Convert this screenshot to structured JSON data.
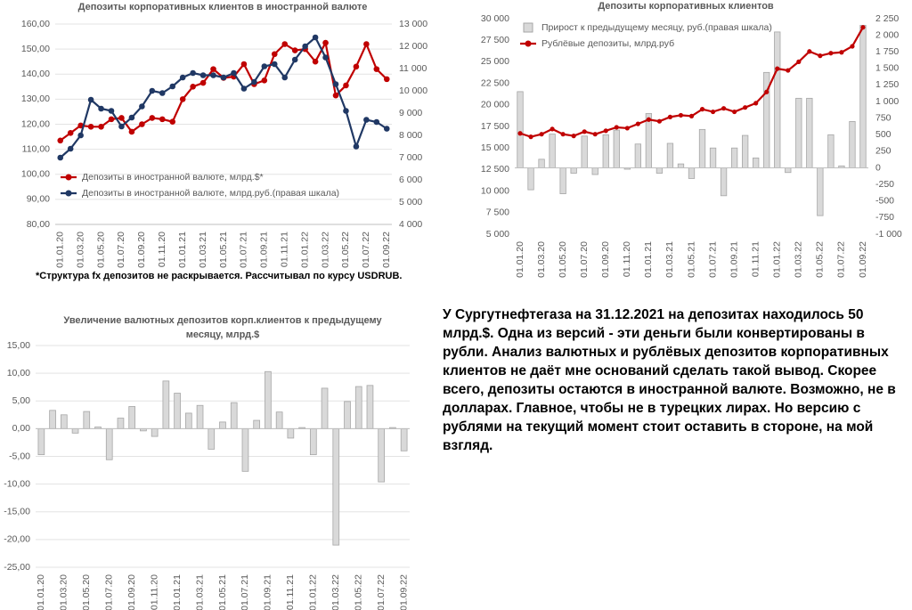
{
  "chart_data": [
    {
      "type": "line",
      "title": "Депозиты корпоративных клиентов в иностранной валюте",
      "note": "*Структура fx депозитов не раскрывается. Рассчитывал по курсу USDRUB.",
      "categories": [
        "01.01.20",
        null,
        "01.03.20",
        null,
        "01.05.20",
        null,
        "01.07.20",
        null,
        "01.09.20",
        null,
        "01.11.20",
        null,
        "01.01.21",
        null,
        "01.03.21",
        null,
        "01.05.21",
        null,
        "01.07.21",
        null,
        "01.09.21",
        null,
        "01.11.21",
        null,
        "01.01.22",
        null,
        "01.03.22",
        null,
        "01.05.22",
        null,
        "01.07.22",
        null,
        "01.09.22"
      ],
      "series": [
        {
          "name": "Депозиты в иностранной валюте, млрд.$*",
          "color": "#c00000",
          "axis": "y",
          "values": [
            113.5,
            116.5,
            119.5,
            119,
            119,
            122,
            122.5,
            117,
            120,
            122.5,
            122,
            121,
            130,
            135,
            136.5,
            142,
            138.5,
            139,
            144,
            136,
            137.5,
            148,
            152,
            149.5,
            150,
            145,
            152.5,
            131.5,
            135.5,
            143,
            152,
            142,
            138
          ]
        },
        {
          "name": "Депозиты в иностранной валюте, млрд.руб.(правая шкала)",
          "color": "#203864",
          "axis": "y2",
          "values": [
            7000,
            7400,
            8000,
            9600,
            9200,
            9100,
            8400,
            8800,
            9300,
            10000,
            9900,
            10200,
            10600,
            10800,
            10700,
            10700,
            10600,
            10800,
            10100,
            10400,
            11100,
            11200,
            10600,
            11400,
            12000,
            12400,
            11500,
            10300,
            9100,
            7500,
            8700,
            8600,
            8300
          ]
        }
      ],
      "ylim": [
        80,
        160
      ],
      "yticks": [
        {
          "value": 80,
          "label": "80,00"
        },
        {
          "value": 90,
          "label": "90,00"
        },
        {
          "value": 100,
          "label": "100,00"
        },
        {
          "value": 110,
          "label": "110,00"
        },
        {
          "value": 120,
          "label": "120,00"
        },
        {
          "value": 130,
          "label": "130,00"
        },
        {
          "value": 140,
          "label": "140,00"
        },
        {
          "value": 150,
          "label": "150,00"
        },
        {
          "value": 160,
          "label": "160,00"
        }
      ],
      "y2lim": [
        4000,
        13000
      ],
      "y2ticks": [
        {
          "value": 4000,
          "label": "4 000"
        },
        {
          "value": 5000,
          "label": "5 000"
        },
        {
          "value": 6000,
          "label": "6 000"
        },
        {
          "value": 7000,
          "label": "7 000"
        },
        {
          "value": 8000,
          "label": "8 000"
        },
        {
          "value": 9000,
          "label": "9 000"
        },
        {
          "value": 10000,
          "label": "10 000"
        },
        {
          "value": 11000,
          "label": "11 000"
        },
        {
          "value": 12000,
          "label": "12 000"
        },
        {
          "value": 13000,
          "label": "13 000"
        }
      ],
      "grid": true,
      "legend": "lower left"
    },
    {
      "type": "combo",
      "title": "Депозиты корпоративных клиентов",
      "categories": [
        "01.01.20",
        null,
        "01.03.20",
        null,
        "01.05.20",
        null,
        "01.07.20",
        null,
        "01.09.20",
        null,
        "01.11.20",
        null,
        "01.01.21",
        null,
        "01.03.21",
        null,
        "01.05.21",
        null,
        "01.07.21",
        null,
        "01.09.21",
        null,
        "01.11.21",
        null,
        "01.01.22",
        null,
        "01.03.22",
        null,
        "01.05.22",
        null,
        "01.07.22",
        null,
        "01.09.22"
      ],
      "series": [
        {
          "name": "Прирост к предыдущему месяцу, руб.(правая шкала)",
          "type": "bar",
          "color": "#d9d9d9",
          "axis": "y2",
          "values": [
            1150,
            -330,
            130,
            510,
            -390,
            -80,
            480,
            -100,
            500,
            570,
            -20,
            360,
            820,
            -80,
            370,
            60,
            -160,
            580,
            300,
            -420,
            300,
            490,
            150,
            1440,
            2050,
            -70,
            1050,
            1050,
            -720,
            500,
            30,
            700,
            2150
          ]
        },
        {
          "name": "Рублёвые депозиты, млрд.руб",
          "type": "line",
          "color": "#c00000",
          "axis": "y",
          "values": [
            16700,
            16300,
            16600,
            17200,
            16600,
            16400,
            16900,
            16600,
            17000,
            17400,
            17300,
            17800,
            18300,
            18100,
            18600,
            18800,
            18700,
            19500,
            19200,
            19600,
            19200,
            19700,
            20200,
            21500,
            24200,
            24000,
            25000,
            26200,
            25700,
            26000,
            26100,
            26800,
            29000
          ]
        }
      ],
      "ylim": [
        5000,
        30000
      ],
      "yticks": [
        {
          "value": 5000,
          "label": "5 000"
        },
        {
          "value": 7500,
          "label": "7 500"
        },
        {
          "value": 10000,
          "label": "10 000"
        },
        {
          "value": 12500,
          "label": "12 500"
        },
        {
          "value": 15000,
          "label": "15 000"
        },
        {
          "value": 17500,
          "label": "17 500"
        },
        {
          "value": 20000,
          "label": "20 000"
        },
        {
          "value": 22500,
          "label": "22 500"
        },
        {
          "value": 25000,
          "label": "25 000"
        },
        {
          "value": 27500,
          "label": "27 500"
        },
        {
          "value": 30000,
          "label": "30 000"
        }
      ],
      "y2lim": [
        -1000,
        2250
      ],
      "y2ticks": [
        {
          "value": -1000,
          "label": "-1 000"
        },
        -750,
        -500,
        -250,
        0,
        250,
        500,
        750,
        {
          "value": 1000,
          "label": "1 000"
        },
        {
          "value": 1250,
          "label": "1 250"
        },
        {
          "value": 1500,
          "label": "1 500"
        },
        {
          "value": 1750,
          "label": "1 750"
        },
        {
          "value": 2000,
          "label": "2 000"
        },
        {
          "value": 2250,
          "label": "2 250"
        }
      ],
      "grid": false,
      "legend": "upper left"
    },
    {
      "type": "bar",
      "title": "Увеличение валютных депозитов корп.клиентов к предыдущему месяцу, млрд.$",
      "color": "#d9d9d9",
      "categories": [
        "01.01.20",
        null,
        "01.03.20",
        null,
        "01.05.20",
        null,
        "01.07.20",
        null,
        "01.09.20",
        null,
        "01.11.20",
        null,
        "01.01.21",
        null,
        "01.03.21",
        null,
        "01.05.21",
        null,
        "01.07.21",
        null,
        "01.09.21",
        null,
        "01.11.21",
        null,
        "01.01.22",
        null,
        "01.03.22",
        null,
        "01.05.22",
        null,
        "01.07.22",
        null,
        "01.09.22"
      ],
      "values": [
        -4.7,
        3.3,
        2.5,
        -0.8,
        3.1,
        0.3,
        -5.6,
        1.9,
        4.0,
        -0.4,
        -1.4,
        8.6,
        6.4,
        2.8,
        4.2,
        -3.7,
        1.2,
        4.7,
        -7.7,
        1.5,
        10.3,
        3.0,
        -1.7,
        0.2,
        -4.7,
        7.3,
        -21.0,
        4.9,
        7.6,
        7.8,
        -9.6,
        0.2,
        -4.0
      ],
      "ylim": [
        -25,
        15
      ],
      "yticks": [
        {
          "value": -25,
          "label": "-25,00"
        },
        {
          "value": -20,
          "label": "-20,00"
        },
        {
          "value": -15,
          "label": "-15,00"
        },
        {
          "value": -10,
          "label": "-10,00"
        },
        {
          "value": -5,
          "label": "-5,00"
        },
        {
          "value": 0,
          "label": "0,00"
        },
        {
          "value": 5,
          "label": "5,00"
        },
        {
          "value": 10,
          "label": "10,00"
        },
        {
          "value": 15,
          "label": "15,00"
        }
      ],
      "grid": true
    }
  ],
  "text": {
    "paragraph": "У Сургутнефтегаза на 31.12.2021 на депозитах находилось 50 млрд.$. Одна из версий - эти деньги были конвертированы в рубли. Анализ валютных и рублёвых депозитов корпоративных клиентов не даёт мне оснований сделать такой вывод. Скорее всего, депозиты остаются в иностранной валюте. Возможно, не в долларах. Главное, чтобы не в турецких лирах. Но версию с рублями на текущий момент стоит оставить в стороне, на мой взгляд."
  }
}
